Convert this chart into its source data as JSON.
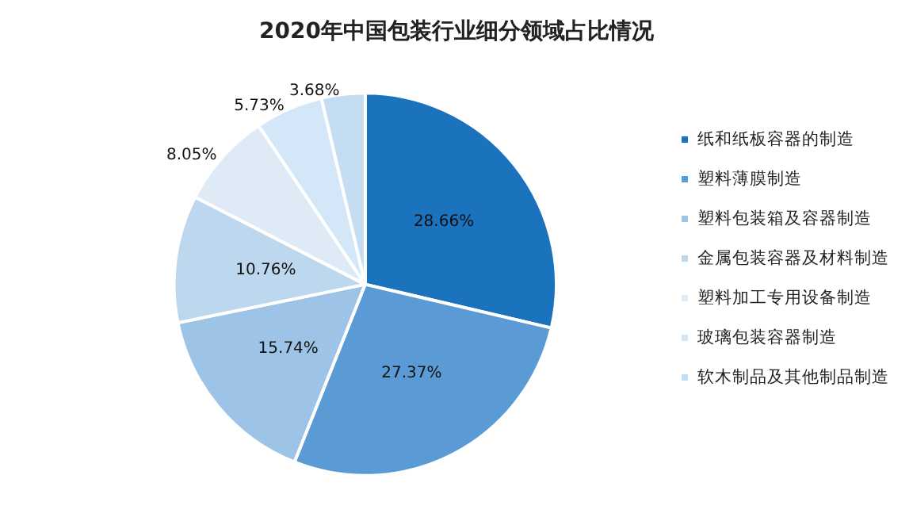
{
  "chart_data": {
    "type": "pie",
    "title": "2020年中国包装行业细分领域占比情况",
    "categories": [
      "纸和纸板容器的制造",
      "塑料薄膜制造",
      "塑料包装箱及容器制造",
      "金属包装容器及材料制造",
      "塑料加工专用设备制造",
      "玻璃包装容器制造",
      "软木制品及其他制品制造"
    ],
    "values": [
      28.66,
      27.37,
      15.74,
      10.76,
      8.05,
      5.73,
      3.68
    ],
    "colors": [
      "#1b72bd",
      "#5b9bd5",
      "#9dc3e6",
      "#bdd7ee",
      "#deebf7",
      "#d4e7f8",
      "#c4ddf3"
    ],
    "value_labels": [
      "28.66%",
      "27.37%",
      "15.74%",
      "10.76%",
      "8.05%",
      "5.73%",
      "3.68%"
    ],
    "legend": "right"
  }
}
